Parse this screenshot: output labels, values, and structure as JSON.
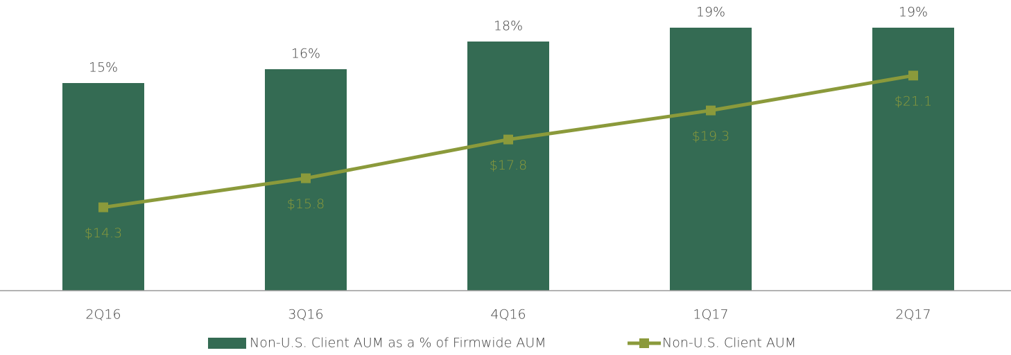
{
  "chart_data": {
    "type": "bar-line",
    "categories": [
      "2Q16",
      "3Q16",
      "4Q16",
      "1Q17",
      "2Q17"
    ],
    "series": [
      {
        "name": "Non-U.S. Client AUM as a % of Firmwide AUM",
        "type": "bar",
        "color": "#346b53",
        "values": [
          15,
          16,
          18,
          19,
          19
        ],
        "value_labels": [
          "15%",
          "16%",
          "18%",
          "19%",
          "19%"
        ]
      },
      {
        "name": "Non-U.S. Client AUM",
        "type": "line",
        "axis": "y2",
        "color": "#8b9a3b",
        "values": [
          14.3,
          15.8,
          17.8,
          19.3,
          21.1
        ],
        "value_labels": [
          "$14.3",
          "$15.8",
          "$17.8",
          "$19.3",
          "$21.1"
        ]
      }
    ],
    "ylim": [
      0,
      21
    ],
    "y2lim": [
      10,
      25
    ],
    "grid": false,
    "legend": "bottom"
  }
}
